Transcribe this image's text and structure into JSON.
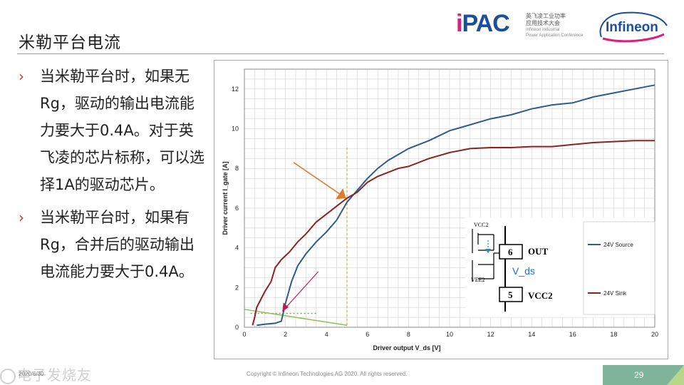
{
  "slide": {
    "title": "米勒平台电流",
    "bullets": [
      "当米勒平台时，如果无Rg，驱动的输出电流能力要大于0.4A。对于英飞凌的芯片标称，可以选择1A的驱动芯片。",
      "当米勒平台时，如果有Rg，合并后的驱动输出电流能力要大于0.4A。"
    ]
  },
  "logos": {
    "ipac_word_i": "i",
    "ipac_word_rest": "PAC",
    "ipac_cn": "英飞凌工业功率\n应用技术大会",
    "ipac_en": "Infineon Industrial\nPower Application Conference",
    "infineon": "Infineon"
  },
  "footer": {
    "date": "2020/6/30",
    "copyright": "Copyright © Infineon Technologies AG 2020. All rights reserved.",
    "page": "29"
  },
  "watermark": "电子发烧友",
  "colors": {
    "source": "#2e5c8a",
    "sink": "#8b2323",
    "accent_orange": "#e07b2a",
    "green": "#8fc25a",
    "page_bg": "#7fb39a"
  },
  "inset": {
    "vcc2_top": "VCC2",
    "vee2": "VEE2",
    "pin6": "6",
    "out": "OUT",
    "pin5": "5",
    "vcc2": "VCC2",
    "vds": "V_ds"
  },
  "chart_data": {
    "type": "line",
    "xlabel": "Driver output V_ds [V]",
    "ylabel": "Driver current I_gate [A]",
    "xlim": [
      0,
      20
    ],
    "ylim": [
      0,
      13
    ],
    "xticks": [
      0,
      2,
      4,
      6,
      8,
      10,
      12,
      14,
      16,
      18,
      20
    ],
    "yticks": [
      0,
      2,
      4,
      6,
      8,
      10,
      12
    ],
    "grid": true,
    "legend_position": "right",
    "series": [
      {
        "name": "24V Source",
        "color": "#2e5c8a",
        "points": [
          [
            0.6,
            0.1
          ],
          [
            1.0,
            0.15
          ],
          [
            1.5,
            0.2
          ],
          [
            1.8,
            0.3
          ],
          [
            2.0,
            1.2
          ],
          [
            2.3,
            2.3
          ],
          [
            2.6,
            3.1
          ],
          [
            3.0,
            3.7
          ],
          [
            3.5,
            4.3
          ],
          [
            4.0,
            4.8
          ],
          [
            4.5,
            5.4
          ],
          [
            5.0,
            6.3
          ],
          [
            5.5,
            6.9
          ],
          [
            6.0,
            7.5
          ],
          [
            6.5,
            8.0
          ],
          [
            7.0,
            8.4
          ],
          [
            7.5,
            8.7
          ],
          [
            8.0,
            9.0
          ],
          [
            9.0,
            9.4
          ],
          [
            10.0,
            9.9
          ],
          [
            11.0,
            10.2
          ],
          [
            12.0,
            10.5
          ],
          [
            13.0,
            10.7
          ],
          [
            14.0,
            11.0
          ],
          [
            15.0,
            11.2
          ],
          [
            16.0,
            11.3
          ],
          [
            17.0,
            11.6
          ],
          [
            18.0,
            11.8
          ],
          [
            19.0,
            12.0
          ],
          [
            20.0,
            12.2
          ]
        ]
      },
      {
        "name": "24V Sink",
        "color": "#8b2323",
        "points": [
          [
            0.4,
            0.1
          ],
          [
            0.5,
            0.5
          ],
          [
            0.6,
            1.0
          ],
          [
            0.8,
            1.4
          ],
          [
            1.0,
            1.8
          ],
          [
            1.3,
            2.3
          ],
          [
            1.5,
            3.0
          ],
          [
            1.8,
            3.4
          ],
          [
            2.2,
            3.8
          ],
          [
            2.6,
            4.3
          ],
          [
            3.0,
            4.7
          ],
          [
            3.5,
            5.3
          ],
          [
            4.0,
            5.7
          ],
          [
            4.5,
            6.1
          ],
          [
            5.0,
            6.5
          ],
          [
            5.5,
            6.8
          ],
          [
            6.0,
            7.3
          ],
          [
            6.5,
            7.6
          ],
          [
            7.0,
            7.8
          ],
          [
            7.5,
            8.0
          ],
          [
            8.0,
            8.1
          ],
          [
            9.0,
            8.5
          ],
          [
            10.0,
            8.8
          ],
          [
            11.0,
            9.0
          ],
          [
            12.0,
            9.05
          ],
          [
            13.0,
            9.05
          ],
          [
            14.0,
            9.1
          ],
          [
            15.0,
            9.1
          ],
          [
            16.0,
            9.2
          ],
          [
            17.0,
            9.3
          ],
          [
            18.0,
            9.35
          ],
          [
            19.0,
            9.4
          ],
          [
            20.0,
            9.4
          ]
        ]
      }
    ],
    "annotations": {
      "vline_x": 5,
      "hline_y": 0.7,
      "green_line": [
        [
          0,
          0.9
        ],
        [
          5,
          0.1
        ]
      ]
    }
  }
}
